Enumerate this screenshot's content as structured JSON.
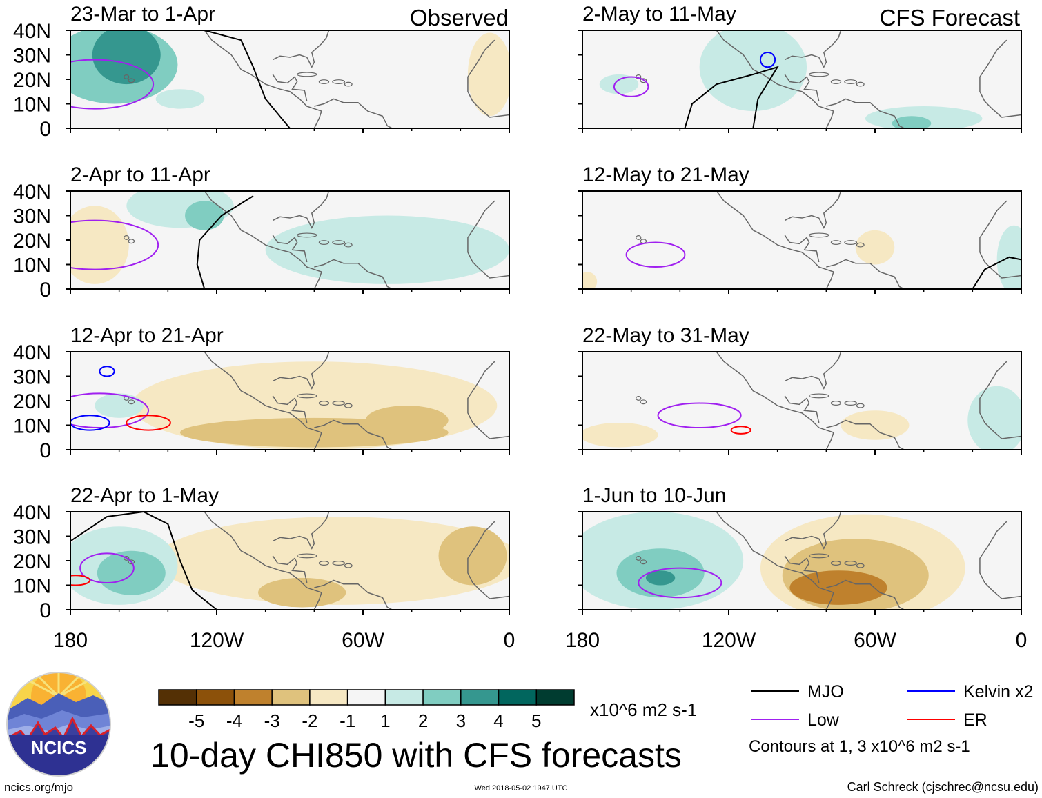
{
  "chart_data": {
    "type": "map-panels",
    "title": "10-day CHI850 with CFS forecasts",
    "column_labels": {
      "left": "Observed",
      "right": "CFS Forecast"
    },
    "x_ticks": [
      "180",
      "120W",
      "60W",
      "0"
    ],
    "y_ticks": [
      "40N",
      "30N",
      "20N",
      "10N",
      "0"
    ],
    "xlim": [
      -180,
      0
    ],
    "ylim": [
      0,
      40
    ],
    "panels": [
      {
        "title": "23-Mar to 1-Apr",
        "column": "Observed"
      },
      {
        "title": "2-Apr to 11-Apr",
        "column": "Observed"
      },
      {
        "title": "12-Apr to 21-Apr",
        "column": "Observed"
      },
      {
        "title": "22-Apr to 1-May",
        "column": "Observed"
      },
      {
        "title": "2-May to 11-May",
        "column": "CFS Forecast"
      },
      {
        "title": "12-May to 21-May",
        "column": "CFS Forecast"
      },
      {
        "title": "22-May to 31-May",
        "column": "CFS Forecast"
      },
      {
        "title": "1-Jun to 10-Jun",
        "column": "CFS Forecast"
      }
    ],
    "colorbar": {
      "ticks": [
        "-5",
        "-4",
        "-3",
        "-2",
        "-1",
        "1",
        "2",
        "3",
        "4",
        "5"
      ],
      "colors": [
        "#543005",
        "#8c510a",
        "#bf812d",
        "#dfc27d",
        "#f6e8c3",
        "#f5f5f5",
        "#c7eae5",
        "#80cdc1",
        "#35978f",
        "#01665e",
        "#003c30"
      ],
      "units": "x10^6 m2 s-1"
    },
    "legend": [
      {
        "label": "MJO",
        "color": "#000000"
      },
      {
        "label": "Kelvin x2",
        "color": "#0000ff"
      },
      {
        "label": "Low",
        "color": "#a020f0"
      },
      {
        "label": "ER",
        "color": "#ff0000"
      }
    ],
    "contour_note": "Contours at 1, 3 x10^6 m2 s-1"
  },
  "footer": {
    "logo_text": "NCICS",
    "url": "ncics.org/mjo",
    "timestamp": "Wed 2018-05-02 1947 UTC",
    "credit": "Carl Schreck (cjschrec@ncsu.edu)"
  }
}
